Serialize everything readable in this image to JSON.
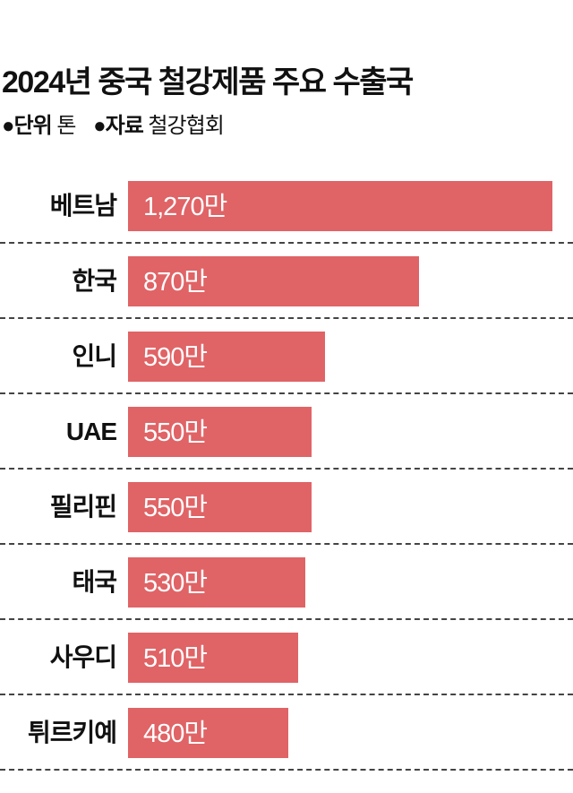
{
  "chart_data": {
    "type": "bar",
    "orientation": "horizontal",
    "title": "2024년 중국 철강제품 주요 수출국",
    "unit_label": "단위",
    "unit": "톤",
    "source_label": "자료",
    "source": "철강협회",
    "categories": [
      "베트남",
      "한국",
      "인니",
      "UAE",
      "필리핀",
      "태국",
      "사우디",
      "튀르키예"
    ],
    "values": [
      1270,
      870,
      590,
      550,
      550,
      530,
      510,
      480
    ],
    "data_labels": [
      "1,270만",
      "870만",
      "590만",
      "550만",
      "550만",
      "530만",
      "510만",
      "480만"
    ],
    "value_multiplier_label": "만",
    "xlim": [
      0,
      1270
    ],
    "grid": false,
    "bar_color": "#e06366"
  }
}
